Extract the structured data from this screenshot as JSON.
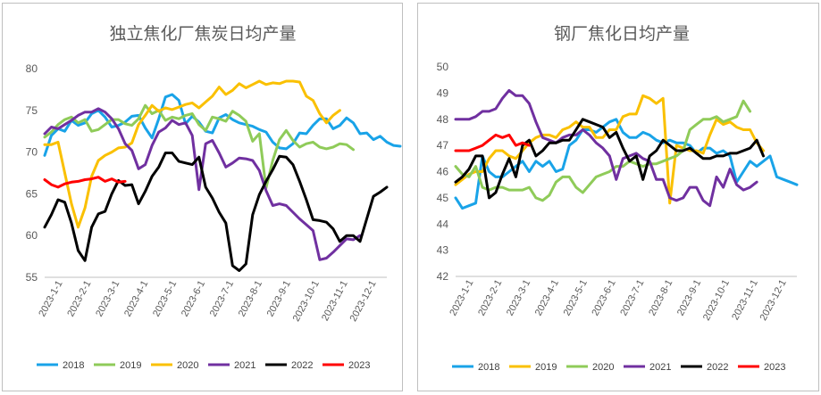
{
  "chart_data": [
    {
      "type": "line",
      "title": "独立焦化厂焦炭日均产量",
      "ylim": [
        55,
        80
      ],
      "yticks": [
        55,
        60,
        65,
        70,
        75,
        80
      ],
      "x_labels": [
        "2023-1-1",
        "2023-2-1",
        "2023-3-1",
        "2023-4-1",
        "2023-5-1",
        "2023-6-1",
        "2023-7-1",
        "2023-8-1",
        "2023-9-1",
        "2023-10-1",
        "2023-11-1",
        "2023-12-1"
      ],
      "grid": false,
      "legend": "bottom",
      "series": [
        {
          "name": "2018",
          "color": "#19a3e8",
          "values": [
            69.6,
            72.0,
            72.8,
            72.5,
            73.8,
            73.2,
            73.5,
            74.6,
            75.0,
            74.2,
            73.0,
            73.2,
            73.6,
            74.3,
            74.4,
            72.9,
            71.7,
            74.0,
            76.6,
            76.9,
            76.2,
            73.4,
            74.3,
            73.6,
            72.5,
            72.3,
            74.1,
            74.5,
            73.9,
            73.5,
            73.3,
            73.1,
            72.7,
            72.4,
            71.2,
            70.5,
            70.4,
            71.0,
            72.3,
            72.2,
            73.2,
            74.0,
            74.0,
            72.8,
            73.2,
            74.1,
            73.5,
            72.2,
            72.3,
            71.5,
            71.9,
            71.2,
            70.8,
            70.7
          ]
        },
        {
          "name": "2019",
          "color": "#8fcb59",
          "values": [
            71.8,
            72.4,
            73.3,
            73.9,
            74.2,
            73.5,
            73.9,
            72.5,
            72.7,
            73.3,
            73.9,
            73.9,
            73.4,
            73.2,
            74.0,
            75.6,
            74.6,
            75.0,
            73.8,
            74.2,
            74.0,
            74.4,
            74.6,
            73.3,
            72.6,
            74.2,
            74.0,
            73.7,
            74.9,
            74.4,
            73.7,
            71.3,
            72.2,
            65.7,
            69.0,
            71.5,
            72.6,
            71.4,
            70.6,
            71.0,
            71.2,
            70.6,
            70.4,
            70.6,
            71.0,
            70.9,
            70.3
          ]
        },
        {
          "name": "2020",
          "color": "#fac000",
          "values": [
            70.9,
            70.9,
            71.2,
            67.5,
            63.8,
            61.0,
            63.3,
            67.1,
            69.0,
            69.6,
            70.0,
            70.5,
            70.6,
            71.1,
            73.3,
            74.4,
            75.6,
            74.9,
            75.3,
            75.1,
            75.4,
            75.7,
            75.9,
            75.3,
            76.0,
            76.7,
            77.8,
            76.9,
            77.4,
            78.2,
            77.7,
            78.1,
            78.5,
            78.1,
            78.3,
            78.2,
            78.5,
            78.5,
            78.4,
            76.7,
            76.2,
            74.6,
            73.5,
            74.4,
            75.0
          ]
        },
        {
          "name": "2021",
          "color": "#7030a0",
          "values": [
            72.2,
            73.0,
            72.8,
            73.3,
            73.8,
            74.4,
            74.8,
            74.8,
            75.2,
            74.8,
            74.0,
            72.8,
            71.0,
            70.2,
            68.0,
            68.5,
            70.8,
            72.4,
            72.9,
            73.8,
            73.3,
            73.5,
            72.0,
            65.5,
            71.0,
            71.4,
            69.9,
            68.2,
            68.7,
            69.3,
            69.2,
            69.0,
            67.8,
            65.4,
            63.6,
            63.8,
            63.6,
            62.8,
            62.0,
            61.3,
            60.6,
            57.1,
            57.3,
            58.0,
            58.8,
            59.6,
            59.5,
            60.0
          ]
        },
        {
          "name": "2022",
          "color": "#000000",
          "values": [
            61.0,
            62.5,
            64.3,
            64.0,
            61.5,
            58.2,
            57.0,
            61.0,
            62.6,
            62.9,
            65.0,
            66.6,
            66.0,
            66.1,
            63.8,
            65.3,
            67.1,
            68.2,
            69.9,
            69.9,
            68.9,
            68.7,
            68.5,
            69.4,
            65.8,
            64.5,
            62.8,
            61.5,
            56.4,
            55.8,
            56.6,
            62.5,
            64.9,
            66.5,
            67.9,
            69.5,
            69.4,
            68.5,
            66.5,
            64.3,
            61.9,
            61.8,
            61.6,
            60.8,
            59.3,
            60.0,
            60.0,
            59.3,
            62.0,
            64.7,
            65.2,
            65.8
          ]
        },
        {
          "name": "2023",
          "color": "#ff0000",
          "values": [
            66.7,
            66.1,
            65.8,
            66.2,
            66.4,
            66.5,
            66.7,
            66.8,
            67.0,
            66.5,
            66.8,
            66.4,
            66.5
          ]
        }
      ]
    },
    {
      "type": "line",
      "title": "钢厂焦化日均产量",
      "ylim": [
        42,
        50
      ],
      "yticks": [
        42,
        43,
        44,
        45,
        46,
        47,
        48,
        49,
        50
      ],
      "x_labels": [
        "2023-1-1",
        "2023-2-1",
        "2023-3-1",
        "2023-4-1",
        "2023-5-1",
        "2023-6-1",
        "2023-7-1",
        "2023-8-1",
        "2023-9-1",
        "2023-10-1",
        "2023-11-1",
        "2023-12-1"
      ],
      "grid": false,
      "legend": "bottom",
      "series": [
        {
          "name": "2018",
          "color": "#19a3e8",
          "values": [
            45.0,
            44.6,
            44.7,
            44.8,
            46.6,
            46.0,
            45.8,
            45.8,
            46.0,
            46.2,
            46.4,
            46.0,
            46.4,
            46.2,
            46.4,
            46.0,
            46.1,
            47.0,
            47.2,
            47.6,
            47.6,
            47.5,
            47.7,
            47.9,
            48.0,
            47.5,
            47.3,
            47.3,
            47.5,
            47.4,
            47.2,
            47.1,
            47.2,
            47.1,
            47.1,
            47.0,
            46.7,
            46.9,
            46.9,
            46.7,
            46.8,
            46.6,
            45.6,
            46.0,
            46.4,
            46.2,
            46.4,
            46.6,
            45.8,
            45.7,
            45.6,
            45.5
          ]
        },
        {
          "name": "2019",
          "color": "#fac000",
          "values": [
            45.5,
            45.7,
            45.9,
            46.0,
            46.0,
            46.5,
            46.8,
            46.8,
            46.6,
            46.5,
            46.8,
            47.1,
            47.3,
            47.4,
            47.4,
            47.3,
            47.6,
            47.7,
            47.9,
            47.7,
            47.7,
            47.3,
            47.3,
            47.6,
            47.6,
            48.1,
            48.2,
            48.2,
            48.9,
            48.8,
            48.6,
            48.8,
            44.8,
            47.0,
            46.9,
            46.8,
            46.8,
            46.7,
            47.4,
            48.0,
            47.8,
            47.9,
            47.7,
            47.6,
            47.6,
            47.1,
            46.8
          ]
        },
        {
          "name": "2020",
          "color": "#8fcb59",
          "values": [
            46.2,
            45.9,
            45.8,
            46.2,
            45.4,
            45.3,
            45.4,
            45.4,
            45.3,
            45.3,
            45.3,
            45.4,
            45.0,
            44.9,
            45.1,
            45.6,
            45.8,
            45.8,
            45.4,
            45.2,
            45.5,
            45.8,
            45.9,
            46.0,
            46.2,
            46.2,
            46.4,
            46.3,
            46.2,
            46.3,
            46.3,
            46.4,
            46.5,
            46.6,
            46.8,
            47.6,
            47.8,
            48.0,
            48.0,
            48.1,
            47.9,
            48.0,
            48.1,
            48.7,
            48.3
          ]
        },
        {
          "name": "2021",
          "color": "#7030a0",
          "values": [
            48.0,
            48.0,
            48.0,
            48.1,
            48.3,
            48.3,
            48.4,
            48.8,
            49.1,
            48.9,
            48.9,
            48.6,
            47.9,
            47.3,
            47.2,
            47.1,
            47.3,
            47.4,
            47.4,
            47.6,
            47.4,
            47.1,
            46.9,
            46.6,
            45.7,
            46.5,
            46.6,
            46.7,
            46.5,
            46.4,
            45.7,
            45.7,
            45.0,
            44.9,
            45.0,
            45.4,
            45.4,
            44.9,
            44.7,
            45.8,
            45.4,
            46.1,
            45.5,
            45.3,
            45.4,
            45.6
          ]
        },
        {
          "name": "2022",
          "color": "#000000",
          "values": [
            45.6,
            45.8,
            46.1,
            46.6,
            46.6,
            45.0,
            45.2,
            45.9,
            46.5,
            45.8,
            47.0,
            47.2,
            46.6,
            46.8,
            47.1,
            47.1,
            47.2,
            47.2,
            47.6,
            48.0,
            47.9,
            47.8,
            47.7,
            47.3,
            47.5,
            46.9,
            46.4,
            46.6,
            45.7,
            46.6,
            46.8,
            47.2,
            47.0,
            46.8,
            46.8,
            46.9,
            46.7,
            46.5,
            46.5,
            46.6,
            46.6,
            46.7,
            46.7,
            46.8,
            46.9,
            47.2,
            46.6
          ]
        },
        {
          "name": "2023",
          "color": "#ff0000",
          "values": [
            46.8,
            46.8,
            46.8,
            46.9,
            47.0,
            47.2,
            47.4,
            47.3,
            47.4,
            47.0,
            47.1,
            47.0
          ]
        }
      ]
    }
  ]
}
